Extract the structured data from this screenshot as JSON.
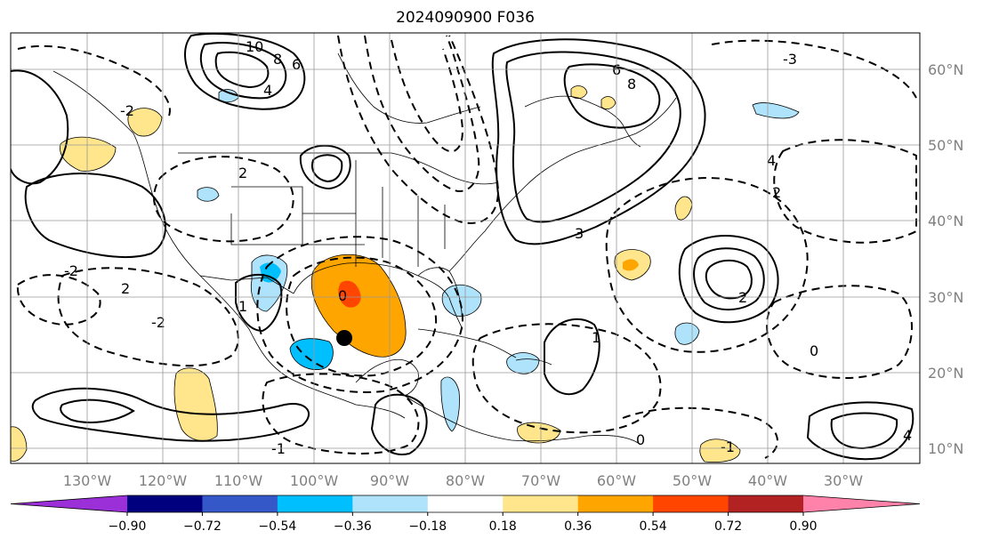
{
  "title": "2024090900 F036",
  "map": {
    "lon_labels": [
      "130°W",
      "120°W",
      "110°W",
      "100°W",
      "90°W",
      "80°W",
      "70°W",
      "60°W",
      "50°W",
      "40°W",
      "30°W"
    ],
    "lat_labels": [
      "60°N",
      "50°N",
      "40°N",
      "30°N",
      "20°N",
      "10°N"
    ],
    "marker": "storm-center-dot"
  },
  "colorbar": {
    "tick_labels": [
      "−0.90",
      "−0.72",
      "−0.54",
      "−0.36",
      "−0.18",
      "0.18",
      "0.36",
      "0.54",
      "0.72",
      "0.90"
    ],
    "colors": [
      "#9b30d9",
      "#00007f",
      "#3558c9",
      "#00bfff",
      "#aee3fb",
      "#ffffff",
      "#ffe68c",
      "#ffa500",
      "#ff4500",
      "#b22222",
      "#ff82ab"
    ]
  },
  "contour_labels": [
    "10",
    "8",
    "6",
    "4",
    "2",
    "0",
    "-1",
    "-2",
    "1",
    "2",
    "3",
    "4",
    "6",
    "8",
    "0",
    "-2",
    "4",
    "2",
    "2",
    "-2",
    "1",
    "-1",
    "-3",
    "0"
  ]
}
